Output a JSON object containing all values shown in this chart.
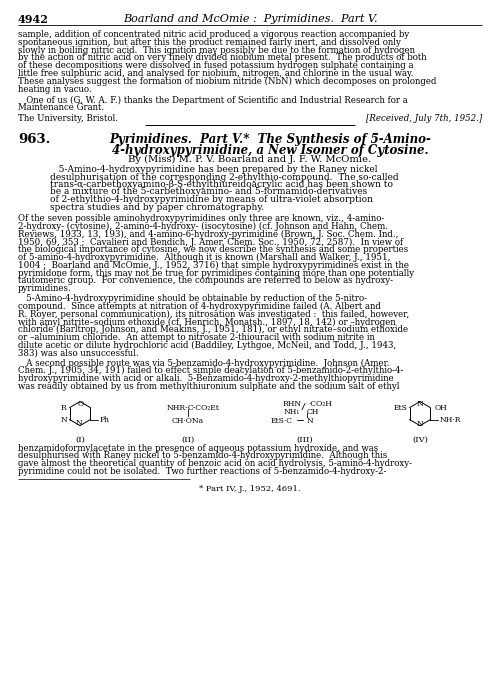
{
  "page_number": "4942",
  "header_text": "Boarland and McOmie :  Pyrimidines.  Part V.",
  "background_color": "#ffffff",
  "text_color": "#000000",
  "fs_body": 6.2,
  "fs_header": 8.0,
  "fs_title_num": 9.5,
  "fs_title": 8.5,
  "fs_authors": 7.2,
  "fs_abstract": 6.5,
  "fs_footnote": 6.0,
  "fs_struct": 5.5,
  "paragraph1_lines": [
    "sample, addition of concentrated nitric acid produced a vigorous reaction accompanied by",
    "spontaneous ignition, but after this the product remained fairly inert, and dissolved only",
    "slowly in boiling nitric acid.  This ignition may possibly be due to the formation of hydrogen",
    "by the action of nitric acid on very finely divided niobium metal present.  The products of both",
    "of these decompositions were dissolved in fused potassium hydrogen sulphate containing a",
    "little free sulphuric acid, and analysed for niobium, nitrogen, and chlorine in the usual way.",
    "These analyses suggest the formation of niobium nitride (NbN) which decomposes on prolonged",
    "heating in vacuo."
  ],
  "ack_lines": [
    "   One of us (G. W. A. F.) thanks the Department of Scientific and Industrial Research for a",
    "Maintenance Grant."
  ],
  "affiliation": "The University, Bristol.",
  "received": "[Received, July 7th, 1952.]",
  "article_num": "963.",
  "article_title_line1": "Pyrimidines.  Part V.*  The Synthesis of 5-Amino-",
  "article_title_line2": "4-hydroxypyrimidine, a New Isomer of Cytosine.",
  "authors": "By (Miss) M. P. V. Boarland and J. F. W. McOmie.",
  "abstract_lines": [
    "   5-Amino-4-hydroxypyrimidine has been prepared by the Raney nickel",
    "desulphurisation of the corresponding 2-ethylthio-compound.  The so-called",
    "trans-α-carbethoxyamino-β-S-ethylthiureidoacrylic acid has been shown to",
    "be a mixture of the 5-carbethoxyamino- and 5-formamido-derivatives",
    "of 2-ethylthio-4-hydroxypyrimidine by means of ultra-violet absorption",
    "spectra studies and by paper chromatography."
  ],
  "body1_lines": [
    "Of the seven possible aminohydroxypyrimidines only three are known, viz., 4-amino-",
    "2-hydroxy- (cytosine), 2-amino-4-hydroxy- (isocytosine) (cf. Johnson and Hahn, Chem.",
    "Reviews, 1933, 13, 193), and 4-amino-6-hydroxy-pyrimidine (Brown, J. Soc. Chem. Ind.,",
    "1950, 69, 353 ;  Cavalieri and Bendich, J. Amer. Chem. Soc., 1950, 72, 2587).  In view of",
    "the biological importance of cytosine, we now describe the synthesis and some properties",
    "of 5-amino-4-hydroxypyrimidine.  Although it is known (Marshall and Walker, J., 1951,",
    "1004 ;  Boarland and McOmie, J., 1952, 3716) that simple hydroxypyrimidines exist in the",
    "pyrimidone form, this may not be true for pyrimidines containing more than one potentially",
    "tautomeric group.  For convenience, the compounds are referred to below as hydroxy-",
    "pyrimidines."
  ],
  "body2_lines": [
    "   5-Amino-4-hydroxypyrimidine should be obtainable by reduction of the 5-nitro-",
    "compound.  Since attempts at nitration of 4-hydroxypyrimidine failed (A. Albert and",
    "R. Royer, personal communication), its nitrosation was investigated :  this failed, however,",
    "with amyl nitrite–sodium ethoxide (cf. Henrich, Monatsh., 1897, 18, 142) or –hydrogen",
    "chloride (Barltrop, Johnson, and Meakins, J., 1951, 181), or ethyl nitrate–sodium ethoxide",
    "or –aluminium chloride.  An attempt to nitrosate 2-thiouracil with sodium nitrite in",
    "dilute acetic or dilute hydrochloric acid (Baddiley, Lythgoe, McNeil, and Todd, J., 1943,",
    "383) was also unsuccessful."
  ],
  "body3_lines": [
    "   A second possible route was via 5-benzamido-4-hydroxypyrimidine.  Johnson (Amer.",
    "Chem. J., 1905, 34, 191) failed to effect simple deacylation of 5-benzamido-2-ethylthio-4-",
    "hydroxypyrimidine with acid or alkali.  5-Benzamido-4-hydroxy-2-methylthiopyrimidine",
    "was readily obtained by us from methylthiuronium sulphate and the sodium salt of ethyl"
  ],
  "body4_lines": [
    "benzamidoformylacetate in the presence of aqueous potassium hydroxide, and was",
    "desulphurised with Raney nickel to 5-benzamido-4-hydroxypyrimidine.  Although this",
    "gave almost the theoretical quantity of benzoic acid on acid hydrolysis, 5-amino-4-hydroxy-",
    "pyrimidine could not be isolated.  Two further reactions of 5-benzamido-4-hydroxy-2-"
  ],
  "footnote": "* Part IV, J., 1952, 4691."
}
